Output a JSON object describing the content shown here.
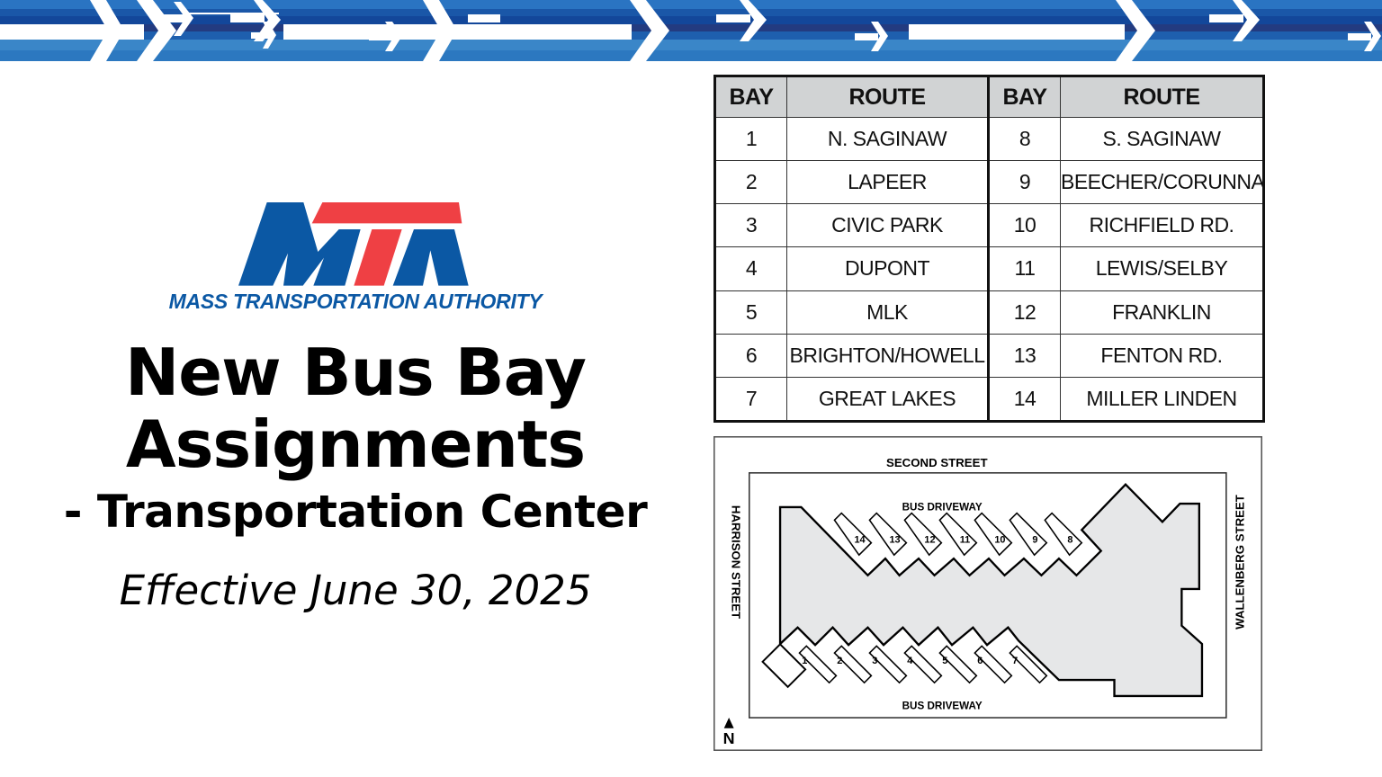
{
  "logo": {
    "letters": "MTA",
    "subtitle": "MASS TRANSPORTATION AUTHORITY",
    "blue": "#0b58a4",
    "red": "#ef4044"
  },
  "title": {
    "line1": "New Bus Bay",
    "line2": "Assignments",
    "line3": "- Transportation Center",
    "effective": "Effective June 30, 2025"
  },
  "table": {
    "headers": [
      "BAY",
      "ROUTE",
      "BAY",
      "ROUTE"
    ],
    "rows": [
      {
        "bay_a": "1",
        "route_a": "N. SAGINAW",
        "bay_b": "8",
        "route_b": "S. SAGINAW"
      },
      {
        "bay_a": "2",
        "route_a": "LAPEER",
        "bay_b": "9",
        "route_b": "BEECHER/CORUNNA"
      },
      {
        "bay_a": "3",
        "route_a": "CIVIC PARK",
        "bay_b": "10",
        "route_b": "RICHFIELD RD."
      },
      {
        "bay_a": "4",
        "route_a": "DUPONT",
        "bay_b": "11",
        "route_b": "LEWIS/SELBY"
      },
      {
        "bay_a": "5",
        "route_a": "MLK",
        "bay_b": "12",
        "route_b": "FRANKLIN"
      },
      {
        "bay_a": "6",
        "route_a": "BRIGHTON/HOWELL",
        "bay_b": "13",
        "route_b": "FENTON RD."
      },
      {
        "bay_a": "7",
        "route_a": "GREAT LAKES",
        "bay_b": "14",
        "route_b": "MILLER LINDEN"
      }
    ]
  },
  "map": {
    "north_street": "SECOND STREET",
    "west_street": "HARRISON STREET",
    "east_street": "WALLENBERG STREET",
    "top_driveway": "BUS DRIVEWAY",
    "bottom_driveway": "BUS DRIVEWAY",
    "north_label": "N",
    "top_bays": [
      "14",
      "13",
      "12",
      "11",
      "10",
      "9",
      "8"
    ],
    "bottom_bays": [
      "1",
      "2",
      "3",
      "4",
      "5",
      "6",
      "7"
    ]
  }
}
